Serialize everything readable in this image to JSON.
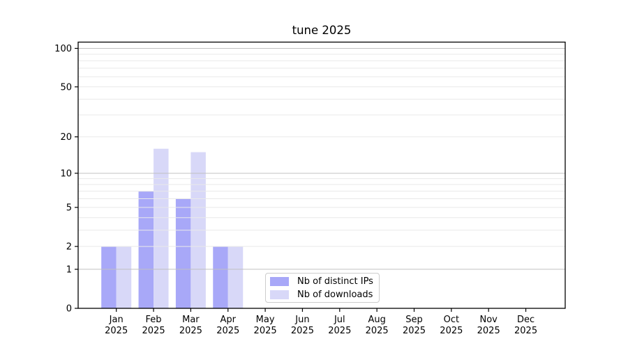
{
  "chart_data": {
    "type": "bar",
    "title": "tune 2025",
    "year_label": "2025",
    "categories": [
      "Jan",
      "Feb",
      "Mar",
      "Apr",
      "May",
      "Jun",
      "Jul",
      "Aug",
      "Sep",
      "Oct",
      "Nov",
      "Dec"
    ],
    "series": [
      {
        "name": "Nb of distinct IPs",
        "color": "#a8a8f8",
        "values": [
          2,
          7,
          6,
          2,
          0,
          0,
          0,
          0,
          0,
          0,
          0,
          0
        ]
      },
      {
        "name": "Nb of downloads",
        "color": "#d8d8f8",
        "values": [
          2,
          16,
          15,
          2,
          0,
          0,
          0,
          0,
          0,
          0,
          0,
          0
        ]
      }
    ],
    "y_axis": {
      "scale": "log1p",
      "tick_labels": [
        0,
        1,
        2,
        5,
        10,
        20,
        50,
        100
      ],
      "major_gridlines": [
        1,
        10,
        100
      ],
      "minor_gridlines": [
        2,
        3,
        4,
        5,
        6,
        7,
        8,
        9,
        20,
        30,
        40,
        50,
        60,
        70,
        80,
        90
      ],
      "ylim": [
        0,
        112
      ]
    },
    "legend_position": "lower center-left inside plot",
    "grid": "on"
  },
  "colors": {
    "bar_distinct_ips": "#a8a8f8",
    "bar_downloads": "#d8d8f8",
    "grid_major": "#c0c0c0",
    "grid_minor": "#e9e9e9",
    "spine": "#000000",
    "legend_border": "#cccccc",
    "background": "#ffffff"
  }
}
